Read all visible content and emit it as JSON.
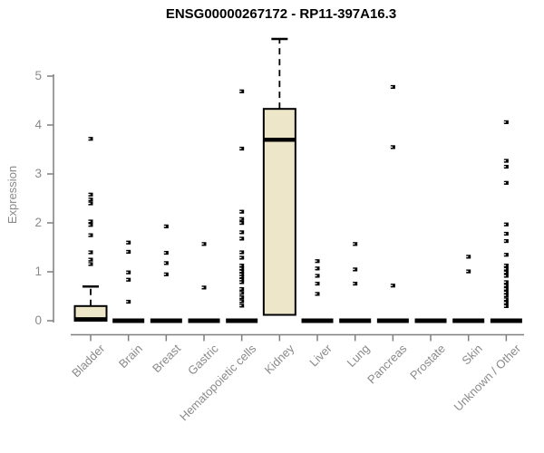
{
  "chart_data": {
    "type": "box",
    "title": "ENSG00000267172 - RP11-397A16.3",
    "ylabel": "Expression",
    "xlabel": "",
    "ylim": [
      0,
      5.8
    ],
    "yticks": [
      "0",
      "1",
      "2",
      "3",
      "4",
      "5"
    ],
    "grid": false,
    "legend": "none",
    "categories": [
      "Bladder",
      "Brain",
      "Breast",
      "Gastric",
      "Hematopoietic cells",
      "Kidney",
      "Liver",
      "Lung",
      "Pancreas",
      "Prostate",
      "Skin",
      "Unknown / Other"
    ],
    "series": [
      {
        "category": "Bladder",
        "box": {
          "q1": 0,
          "median": 0.03,
          "q3": 0.3,
          "whisker_low": 0,
          "whisker_high": 0.7
        },
        "points": [
          3.72,
          2.58,
          2.48,
          2.4,
          2.03,
          1.96,
          1.75,
          1.4,
          1.25,
          1.16
        ]
      },
      {
        "category": "Brain",
        "box": {
          "q1": 0,
          "median": 0,
          "q3": 0,
          "whisker_low": 0,
          "whisker_high": 0
        },
        "points": [
          1.6,
          1.41,
          0.99,
          0.84,
          0.39
        ]
      },
      {
        "category": "Breast",
        "box": {
          "q1": 0,
          "median": 0,
          "q3": 0,
          "whisker_low": 0,
          "whisker_high": 0
        },
        "points": [
          1.93,
          1.39,
          1.18,
          0.95
        ]
      },
      {
        "category": "Gastric",
        "box": {
          "q1": 0,
          "median": 0,
          "q3": 0,
          "whisker_low": 0,
          "whisker_high": 0
        },
        "points": [
          1.57,
          0.68
        ]
      },
      {
        "category": "Hematopoietic cells",
        "box": {
          "q1": 0,
          "median": 0,
          "q3": 0,
          "whisker_low": 0,
          "whisker_high": 0
        },
        "points": [
          4.69,
          3.52,
          2.23,
          2.08,
          2.0,
          1.81,
          1.68,
          1.4,
          1.29,
          1.13,
          1.07,
          1.01,
          0.95,
          0.9,
          0.84,
          0.79,
          0.65,
          0.57,
          0.48,
          0.4,
          0.31
        ]
      },
      {
        "category": "Kidney",
        "box": {
          "q1": 0.12,
          "median": 3.7,
          "q3": 4.33,
          "whisker_low": 0.12,
          "whisker_high": 5.76
        },
        "points": []
      },
      {
        "category": "Liver",
        "box": {
          "q1": 0,
          "median": 0,
          "q3": 0,
          "whisker_low": 0,
          "whisker_high": 0
        },
        "points": [
          1.22,
          1.07,
          0.92,
          0.76,
          0.55
        ]
      },
      {
        "category": "Lung",
        "box": {
          "q1": 0,
          "median": 0,
          "q3": 0,
          "whisker_low": 0,
          "whisker_high": 0
        },
        "points": [
          1.57,
          1.05,
          0.76
        ]
      },
      {
        "category": "Pancreas",
        "box": {
          "q1": 0,
          "median": 0,
          "q3": 0,
          "whisker_low": 0,
          "whisker_high": 0
        },
        "points": [
          4.78,
          3.55,
          0.72
        ]
      },
      {
        "category": "Prostate",
        "box": {
          "q1": 0,
          "median": 0,
          "q3": 0,
          "whisker_low": 0,
          "whisker_high": 0
        },
        "points": []
      },
      {
        "category": "Skin",
        "box": {
          "q1": 0,
          "median": 0,
          "q3": 0,
          "whisker_low": 0,
          "whisker_high": 0
        },
        "points": [
          1.31,
          1.01
        ]
      },
      {
        "category": "Unknown / Other",
        "box": {
          "q1": 0,
          "median": 0,
          "q3": 0,
          "whisker_low": 0,
          "whisker_high": 0
        },
        "points": [
          4.06,
          3.27,
          3.15,
          2.82,
          1.97,
          1.78,
          1.63,
          1.35,
          1.13,
          1.06,
          0.99,
          0.92,
          0.79,
          0.72,
          0.65,
          0.58,
          0.52,
          0.44,
          0.37,
          0.3
        ]
      }
    ],
    "colors": {
      "box_fill": "#EDE6C8",
      "box_border": "#000000",
      "median": "#000000",
      "point": "#000000",
      "axis": "#7F7F7F",
      "tick_text": "#8A8A8A",
      "title_text": "#000000",
      "background": "#FFFFFF"
    }
  }
}
